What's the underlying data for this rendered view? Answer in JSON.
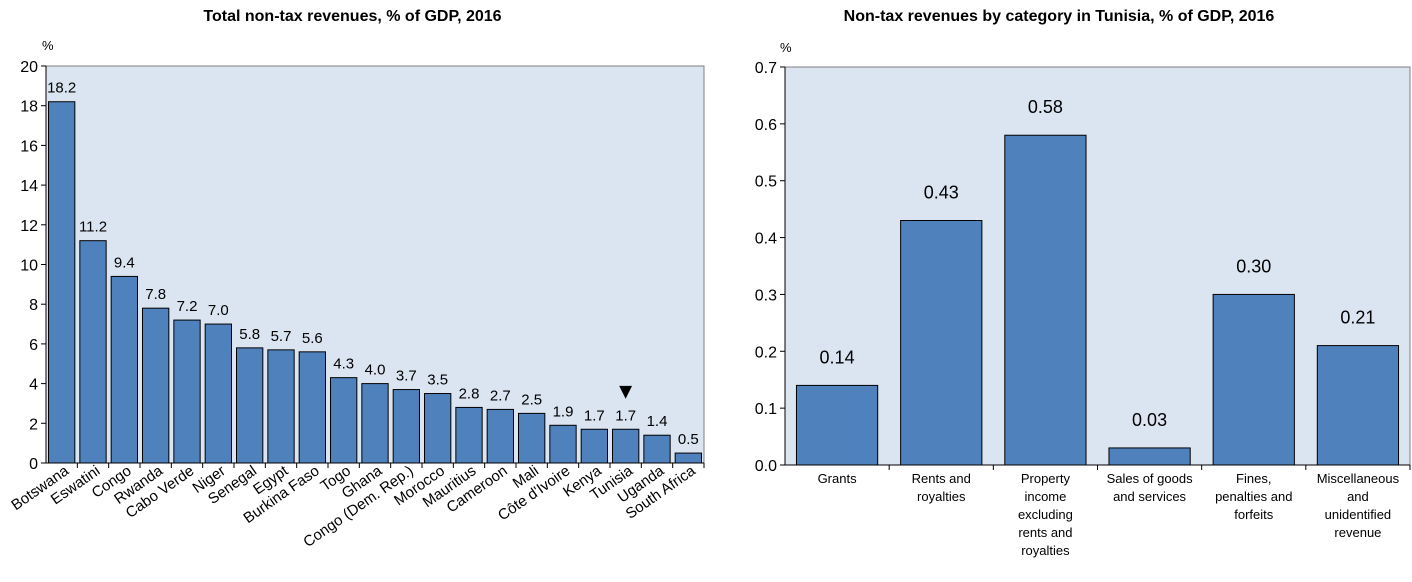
{
  "chart_data": [
    {
      "type": "bar",
      "title": "Total non-tax revenues, % of GDP, 2016",
      "ylabel": "%",
      "xlabel": "",
      "ylim": [
        0,
        20
      ],
      "yticks": [
        0,
        2,
        4,
        6,
        8,
        10,
        12,
        14,
        16,
        18,
        20
      ],
      "grid": false,
      "bar_color": "#4f81bd",
      "plot_background": "#dbe5f1",
      "highlight_category": "Tunisia",
      "highlight_marker": "▼",
      "categories": [
        "Botswana",
        "Eswatini",
        "Congo",
        "Rwanda",
        "Cabo Verde",
        "Niger",
        "Senegal",
        "Egypt",
        "Burkina Faso",
        "Togo",
        "Ghana",
        "Congo (Dem. Rep.)",
        "Morocco",
        "Mauritius",
        "Cameroon",
        "Mali",
        "Côte d'Ivoire",
        "Kenya",
        "Tunisia",
        "Uganda",
        "South Africa"
      ],
      "values": [
        18.2,
        11.2,
        9.4,
        7.8,
        7.2,
        7.0,
        5.8,
        5.7,
        5.6,
        4.3,
        4.0,
        3.7,
        3.5,
        2.8,
        2.7,
        2.5,
        1.9,
        1.7,
        1.7,
        1.4,
        0.5
      ],
      "value_labels": [
        "18.2",
        "11.2",
        "9.4",
        "7.8",
        "7.2",
        "7.0",
        "5.8",
        "5.7",
        "5.6",
        "4.3",
        "4.0",
        "3.7",
        "3.5",
        "2.8",
        "2.7",
        "2.5",
        "1.9",
        "1.7",
        "1.7",
        "1.4",
        "0.5"
      ]
    },
    {
      "type": "bar",
      "title": "Non-tax revenues by category in Tunisia, % of GDP, 2016",
      "ylabel": "%",
      "xlabel": "",
      "ylim": [
        0,
        0.7
      ],
      "yticks": [
        0.0,
        0.1,
        0.2,
        0.3,
        0.4,
        0.5,
        0.6,
        0.7
      ],
      "ytick_labels": [
        "0.0",
        "0.1",
        "0.2",
        "0.3",
        "0.4",
        "0.5",
        "0.6",
        "0.7"
      ],
      "grid": false,
      "bar_color": "#4f81bd",
      "plot_background": "#dbe5f1",
      "categories": [
        "Grants",
        "Rents and royalties",
        "Property income excluding rents and royalties",
        "Sales of goods and services",
        "Fines, penalties and forfeits",
        "Miscellaneous and unidentified revenue"
      ],
      "category_lines": [
        [
          "Grants"
        ],
        [
          "Rents and",
          "royalties"
        ],
        [
          "Property",
          "income",
          "excluding",
          "rents and",
          "royalties"
        ],
        [
          "Sales of goods",
          "and services"
        ],
        [
          "Fines,",
          "penalties and",
          "forfeits"
        ],
        [
          "Miscellaneous",
          "and",
          "unidentified",
          "revenue"
        ]
      ],
      "values": [
        0.14,
        0.43,
        0.58,
        0.03,
        0.3,
        0.21
      ],
      "value_labels": [
        "0.14",
        "0.43",
        "0.58",
        "0.03",
        "0.30",
        "0.21"
      ]
    }
  ]
}
